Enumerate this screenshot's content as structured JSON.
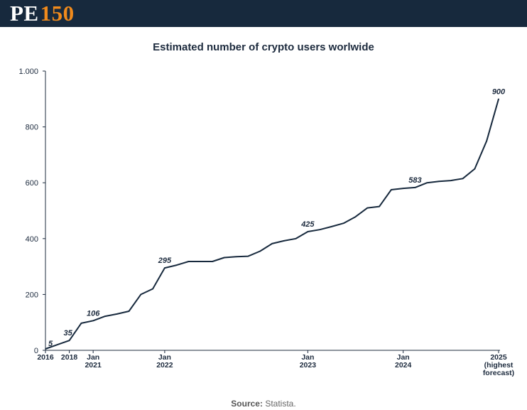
{
  "brand": {
    "logo_text_left": "PE",
    "logo_text_right": "150",
    "header_color": "#17293d",
    "accent_color": "#f08a1c"
  },
  "source": {
    "label": "Source:",
    "value": "Statista."
  },
  "chart_data": {
    "type": "line",
    "title": "Estimated number of crypto users worlwide",
    "xlabel": "",
    "ylabel": "",
    "ylim": [
      0,
      1000
    ],
    "yticks": [
      0,
      200,
      400,
      600,
      800,
      1000
    ],
    "ytick_labels": [
      "0",
      "200",
      "400",
      "600",
      "800",
      "1.000"
    ],
    "xtick_labels": [
      {
        "label_lines": [
          "2016"
        ],
        "index": 0
      },
      {
        "label_lines": [
          "2018"
        ],
        "index": 2
      },
      {
        "label_lines": [
          "Jan",
          "2021"
        ],
        "index": 4
      },
      {
        "label_lines": [
          "Jan",
          "2022"
        ],
        "index": 10
      },
      {
        "label_lines": [
          "Jan",
          "2023"
        ],
        "index": 22
      },
      {
        "label_lines": [
          "Jan",
          "2024"
        ],
        "index": 30
      },
      {
        "label_lines": [
          "2025",
          "(highest",
          "forecast)"
        ],
        "index": 38
      }
    ],
    "series": [
      {
        "name": "",
        "color": "#17293d",
        "values": [
          5,
          20,
          35,
          97,
          106,
          122,
          130,
          140,
          200,
          220,
          295,
          305,
          318,
          318,
          318,
          332,
          335,
          337,
          355,
          382,
          392,
          400,
          425,
          432,
          443,
          455,
          478,
          510,
          515,
          575,
          580,
          583,
          600,
          605,
          608,
          615,
          650,
          750,
          900
        ]
      }
    ],
    "data_labels": [
      {
        "index": 0,
        "text": "5"
      },
      {
        "index": 2,
        "text": "35"
      },
      {
        "index": 4,
        "text": "106"
      },
      {
        "index": 10,
        "text": "295"
      },
      {
        "index": 22,
        "text": "425"
      },
      {
        "index": 31,
        "text": "583"
      },
      {
        "index": 38,
        "text": "900"
      }
    ],
    "grid": false,
    "legend": "none"
  }
}
